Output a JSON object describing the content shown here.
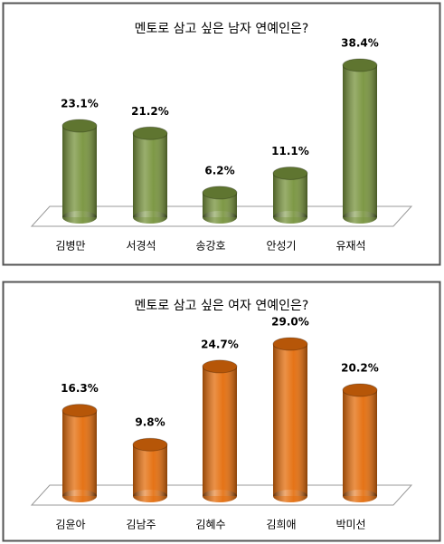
{
  "chart_data": [
    {
      "type": "bar",
      "title": "멘토로 삼고 싶은 남자 연예인은?",
      "categories": [
        "김병만",
        "서경석",
        "송강호",
        "안성기",
        "유재석"
      ],
      "values": [
        23.1,
        21.2,
        6.2,
        11.1,
        38.4
      ],
      "value_labels": [
        "23.1%",
        "21.2%",
        "6.2%",
        "11.1%",
        "38.4%"
      ],
      "color": "#77933c"
    },
    {
      "type": "bar",
      "title": "멘토로 삼고 싶은 여자 연예인은?",
      "categories": [
        "김윤아",
        "김남주",
        "김혜수",
        "김희애",
        "박미선"
      ],
      "values": [
        16.3,
        9.8,
        24.7,
        29.0,
        20.2
      ],
      "value_labels": [
        "16.3%",
        "9.8%",
        "24.7%",
        "29.0%",
        "20.2%"
      ],
      "color": "#e46c0a"
    }
  ]
}
